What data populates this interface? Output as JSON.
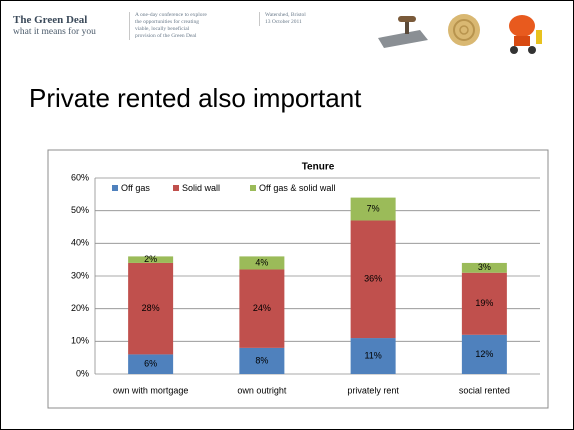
{
  "header": {
    "title": "The Green Deal",
    "subtitle": "what it means for you",
    "description": [
      "A one-day conference to explore",
      "the opportunities for creating",
      "viable, locally beneficial",
      "provision of the Green Deal"
    ],
    "venue": [
      "Watershed, Bristol",
      "13 October 2011"
    ]
  },
  "slide_title": "Private rented also important",
  "chart_data": {
    "type": "bar",
    "stacked": true,
    "title": "Tenure",
    "categories": [
      "own with mortgage",
      "own outright",
      "privately rent",
      "social rented"
    ],
    "series": [
      {
        "name": "Off gas",
        "color": "#4f81bd",
        "values": [
          6,
          8,
          11,
          12
        ],
        "value_labels": [
          "6%",
          "8%",
          "11%",
          "12%"
        ]
      },
      {
        "name": "Solid wall",
        "color": "#c0504d",
        "values": [
          28,
          24,
          36,
          19
        ],
        "value_labels": [
          "28%",
          "24%",
          "36%",
          "19%"
        ]
      },
      {
        "name": "Off gas & solid wall",
        "color": "#9bbb59",
        "values": [
          2,
          4,
          7,
          3
        ],
        "value_labels": [
          "2%",
          "4%",
          "7%",
          "3%"
        ]
      }
    ],
    "ylim": [
      0,
      60
    ],
    "yticks": [
      {
        "value": 0,
        "label": "0%"
      },
      {
        "value": 10,
        "label": "10%"
      },
      {
        "value": 20,
        "label": "20%"
      },
      {
        "value": 30,
        "label": "30%"
      },
      {
        "value": 40,
        "label": "40%"
      },
      {
        "value": 50,
        "label": "50%"
      },
      {
        "value": 60,
        "label": "60%"
      }
    ],
    "grid": true,
    "legend": "top"
  }
}
